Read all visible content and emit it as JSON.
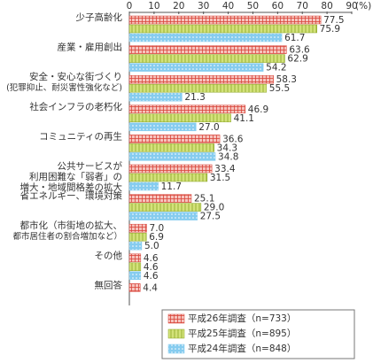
{
  "chart_data": {
    "type": "hbar",
    "x_label": "(%)",
    "categories": [
      "少子高齢化",
      "産業・雇用創出",
      "安全・安心な街づくり\n(犯罪抑止、耐災害性強化など)",
      "社会インフラの老朽化",
      "コミュニティの再生",
      "公共サービスが\n利用困難な「弱者」の\n増大・地域間格差の拡大",
      "省エネルギー、環境対策",
      "都市化（市街地の拡大、\n都市居住者の割合増加など）",
      "その他",
      "無回答"
    ],
    "series": [
      {
        "name": "平成26年調査（n=733）",
        "color": "#f6c3bd",
        "pattern_color": "#d9443a",
        "values": [
          77.5,
          63.6,
          58.3,
          46.9,
          36.6,
          33.4,
          25.1,
          7.0,
          4.6,
          4.4
        ],
        "value_labels": [
          "77.5",
          "63.6",
          "58.3",
          "46.9",
          "36.6",
          "33.4",
          "25.1",
          "7.0",
          "4.6",
          "4.4"
        ]
      },
      {
        "name": "平成25年調査（n=895）",
        "color": "#d3e27a",
        "pattern_color": "#8aa624",
        "values": [
          75.9,
          62.9,
          55.5,
          41.1,
          34.3,
          31.5,
          29.0,
          6.9,
          4.6,
          null
        ],
        "value_labels": [
          "75.9",
          "62.9",
          "55.5",
          "41.1",
          "34.3",
          "31.5",
          "29.0",
          "6.9",
          "4.6",
          null
        ]
      },
      {
        "name": "平成24年調査（n=848）",
        "color": "#86ccef",
        "pattern_color": "#ffffff",
        "values": [
          61.7,
          54.2,
          21.3,
          27.0,
          34.8,
          11.7,
          27.5,
          5.0,
          4.6,
          null
        ],
        "value_labels": [
          "61.7",
          "54.2",
          "21.3",
          "27.0",
          "34.8",
          "11.7",
          "27.5",
          "5.0",
          "4.6",
          null
        ]
      }
    ],
    "xlim": [
      0,
      90
    ],
    "xticks": [
      0,
      10,
      20,
      30,
      40,
      50,
      60,
      70,
      80,
      90
    ]
  }
}
